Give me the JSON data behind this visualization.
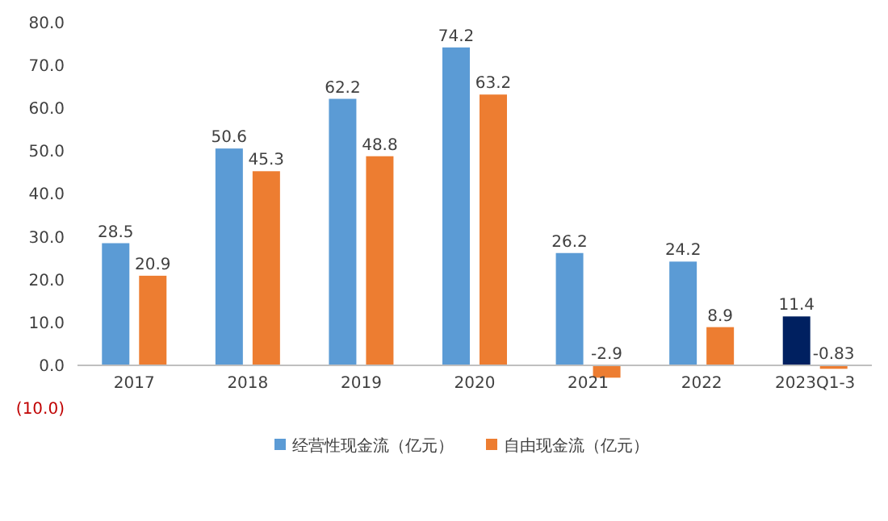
{
  "chart_data": {
    "type": "bar",
    "categories": [
      "2017",
      "2018",
      "2019",
      "2020",
      "2021",
      "2022",
      "2023Q1-3"
    ],
    "series": [
      {
        "name": "经营性现金流（亿元）",
        "color": "#5b9bd5",
        "colors": [
          "#5b9bd5",
          "#5b9bd5",
          "#5b9bd5",
          "#5b9bd5",
          "#5b9bd5",
          "#5b9bd5",
          "#002060"
        ],
        "values": [
          28.5,
          50.6,
          62.2,
          74.2,
          26.2,
          24.2,
          11.4
        ]
      },
      {
        "name": "自由现金流（亿元）",
        "color": "#ed7d31",
        "values": [
          20.9,
          45.3,
          48.8,
          63.2,
          -2.9,
          8.9,
          -0.83
        ]
      }
    ],
    "ylim": [
      -10,
      80
    ],
    "yticks": [
      {
        "value": -10,
        "label": "(10.0)"
      },
      {
        "value": 0,
        "label": "0.0"
      },
      {
        "value": 10,
        "label": "10.0"
      },
      {
        "value": 20,
        "label": "20.0"
      },
      {
        "value": 30,
        "label": "30.0"
      },
      {
        "value": 40,
        "label": "40.0"
      },
      {
        "value": 50,
        "label": "50.0"
      },
      {
        "value": 60,
        "label": "60.0"
      },
      {
        "value": 70,
        "label": "70.0"
      },
      {
        "value": 80,
        "label": "80.0"
      }
    ],
    "data_labels": true,
    "legend": "bottom"
  }
}
